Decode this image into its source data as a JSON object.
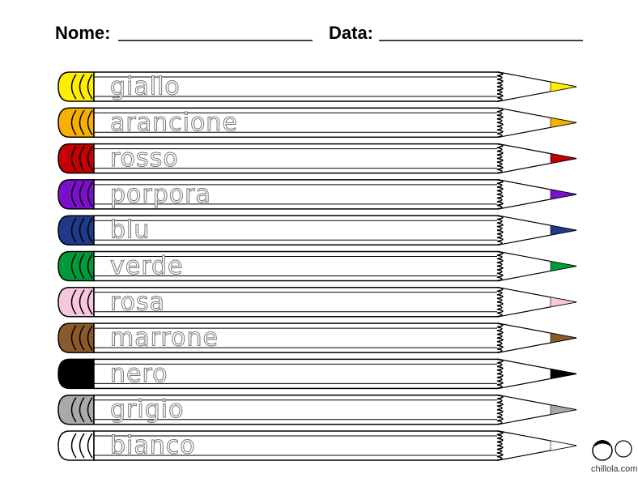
{
  "header": {
    "name_label": "Nome:",
    "date_label": "Data:"
  },
  "pencils": [
    {
      "label": "giallo",
      "color": "#ffee00"
    },
    {
      "label": "arancione",
      "color": "#f7b000"
    },
    {
      "label": "rosso",
      "color": "#c40000"
    },
    {
      "label": "porpora",
      "color": "#7a10cc"
    },
    {
      "label": "blu",
      "color": "#1f3a8a"
    },
    {
      "label": "verde",
      "color": "#009a3a"
    },
    {
      "label": "rosa",
      "color": "#f7c6dc"
    },
    {
      "label": "marrone",
      "color": "#8a5a2a"
    },
    {
      "label": "nero",
      "color": "#000000"
    },
    {
      "label": "grigio",
      "color": "#aaaaaa"
    },
    {
      "label": "bianco",
      "color": "#ffffff"
    }
  ],
  "logo": {
    "text": "chillola.com"
  }
}
